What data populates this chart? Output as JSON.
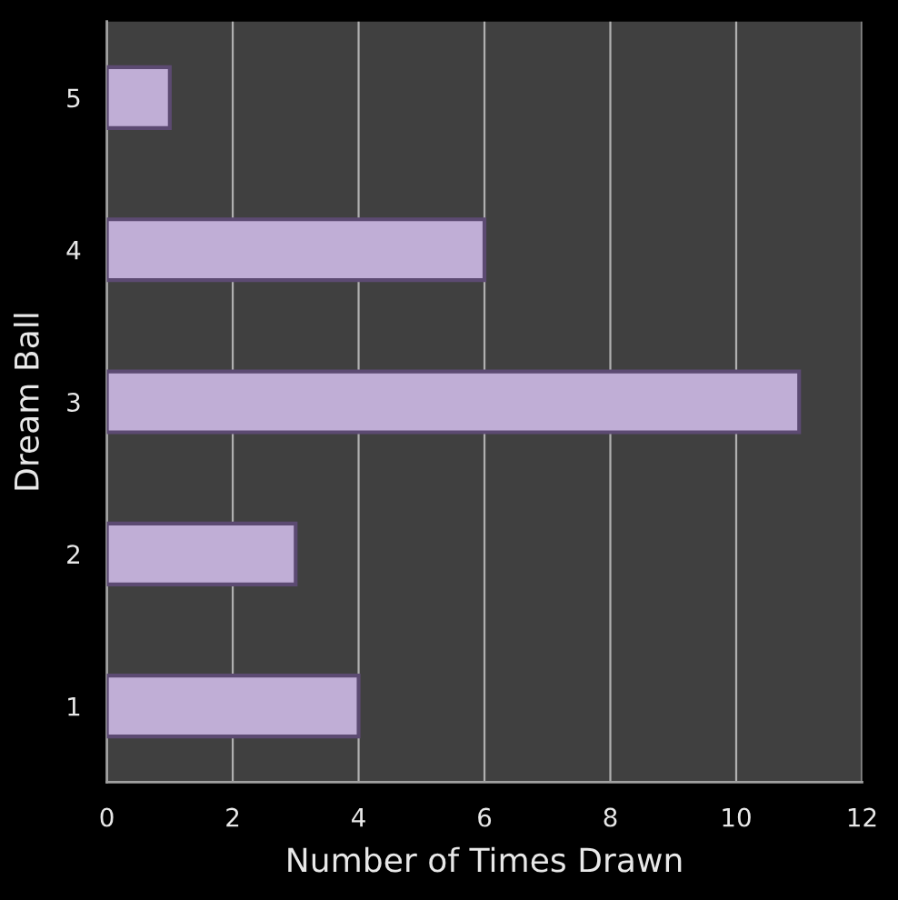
{
  "chart_data": {
    "type": "bar",
    "orientation": "horizontal",
    "categories": [
      "5",
      "4",
      "3",
      "2",
      "1"
    ],
    "values": [
      1,
      6,
      11,
      3,
      4
    ],
    "color": "#c0aed6",
    "xlim": [
      0,
      12
    ],
    "xticks": [
      0,
      2,
      4,
      6,
      8,
      10,
      12
    ],
    "xlabel": "Number of Times Drawn",
    "ylabel": "Dream Ball",
    "grid": "x"
  }
}
